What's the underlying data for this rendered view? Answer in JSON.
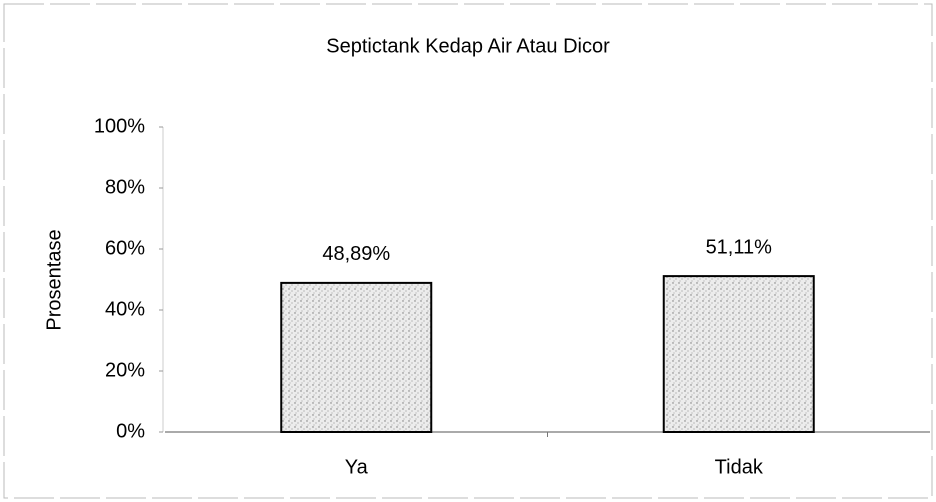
{
  "chart_data": {
    "type": "bar",
    "title": "Septictank Kedap Air Atau Dicor",
    "y_label": "Prosentase",
    "categories": [
      "Ya",
      "Tidak"
    ],
    "values": [
      48.89,
      51.11
    ],
    "value_labels": [
      "48,89%",
      "51,11%"
    ],
    "color": "#d9d9d9",
    "ylim": [
      0,
      100
    ],
    "yticks": [
      {
        "value": 0,
        "label": "0%"
      },
      {
        "value": 20,
        "label": "20%"
      },
      {
        "value": 40,
        "label": "40%"
      },
      {
        "value": 60,
        "label": "60%"
      },
      {
        "value": 80,
        "label": "80%"
      },
      {
        "value": 100,
        "label": "100%"
      }
    ],
    "grid": false
  }
}
